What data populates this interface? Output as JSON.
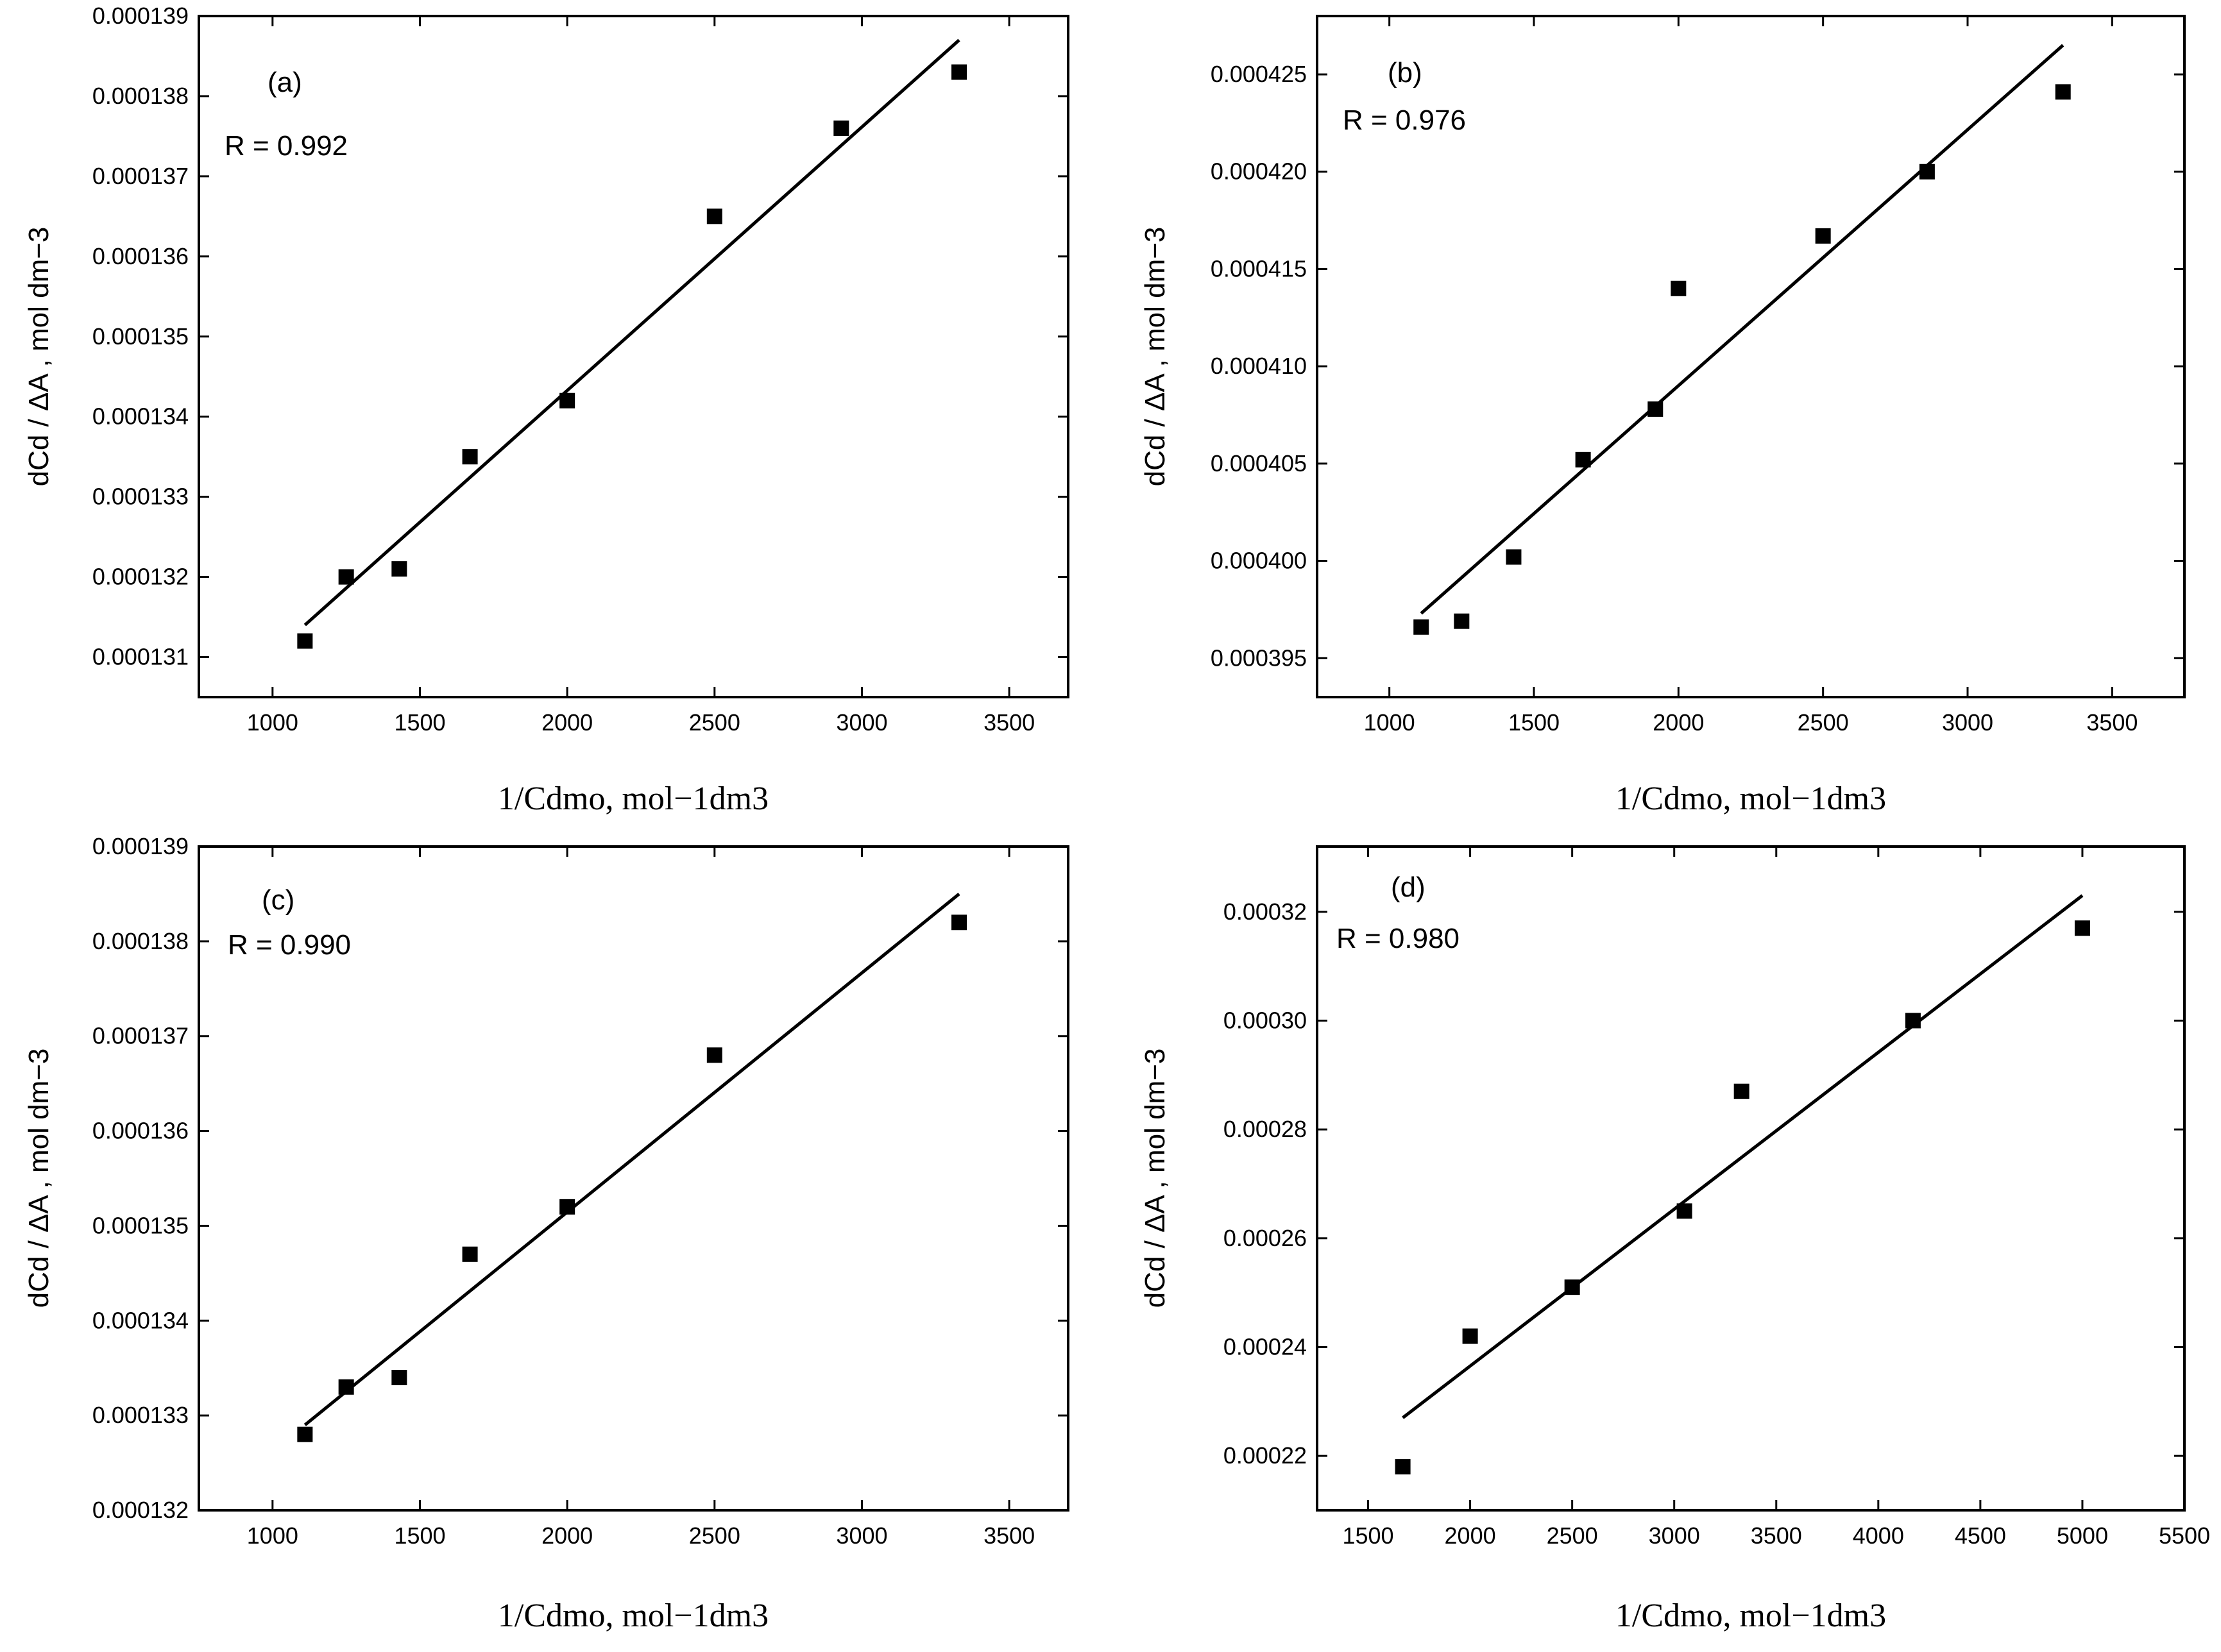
{
  "chart_data": [
    {
      "type": "scatter",
      "panel_label": "(a)",
      "r_text": "R = 0.992",
      "xlabel": "1/Cdmo, mol−1dm3",
      "ylabel": "dCd / ΔA , mol dm−3",
      "xlim": [
        750,
        3700
      ],
      "ylim": [
        0.0001305,
        0.000139
      ],
      "xticks": [
        1000,
        1500,
        2000,
        2500,
        3000,
        3500
      ],
      "xtick_labels": [
        "1000",
        "1500",
        "2000",
        "2500",
        "3000",
        "3500"
      ],
      "yticks": [
        0.000131,
        0.000132,
        0.000133,
        0.000134,
        0.000135,
        0.000136,
        0.000137,
        0.000138,
        0.000139
      ],
      "ytick_labels": [
        "0.000131",
        "0.000132",
        "0.000133",
        "0.000134",
        "0.000135",
        "0.000136",
        "0.000137",
        "0.000138",
        "0.000139"
      ],
      "points": [
        {
          "x": 1110,
          "y": 0.0001312
        },
        {
          "x": 1250,
          "y": 0.000132
        },
        {
          "x": 1430,
          "y": 0.0001321
        },
        {
          "x": 1670,
          "y": 0.0001335
        },
        {
          "x": 2000,
          "y": 0.0001342
        },
        {
          "x": 2500,
          "y": 0.0001365
        },
        {
          "x": 2930,
          "y": 0.0001376
        },
        {
          "x": 3330,
          "y": 0.0001383
        }
      ],
      "fit_line": {
        "x": [
          1110,
          3330
        ],
        "y": [
          0.0001314,
          0.0001387
        ]
      }
    },
    {
      "type": "scatter",
      "panel_label": "(b)",
      "r_text": "R = 0.976",
      "xlabel": "1/Cdmo, mol−1dm3",
      "ylabel": "dCd / ΔA , mol dm−3",
      "xlim": [
        750,
        3750
      ],
      "ylim": [
        0.000393,
        0.000428
      ],
      "xticks": [
        1000,
        1500,
        2000,
        2500,
        3000,
        3500
      ],
      "xtick_labels": [
        "1000",
        "1500",
        "2000",
        "2500",
        "3000",
        "3500"
      ],
      "yticks": [
        0.000395,
        0.0004,
        0.000405,
        0.00041,
        0.000415,
        0.00042,
        0.000425
      ],
      "ytick_labels": [
        "0.000395",
        "0.000400",
        "0.000405",
        "0.000410",
        "0.000415",
        "0.000420",
        "0.000425"
      ],
      "points": [
        {
          "x": 1110,
          "y": 0.0003966
        },
        {
          "x": 1250,
          "y": 0.0003969
        },
        {
          "x": 1430,
          "y": 0.0004002
        },
        {
          "x": 1670,
          "y": 0.0004052
        },
        {
          "x": 1920,
          "y": 0.0004078
        },
        {
          "x": 2000,
          "y": 0.000414
        },
        {
          "x": 2500,
          "y": 0.0004167
        },
        {
          "x": 2860,
          "y": 0.00042
        },
        {
          "x": 3330,
          "y": 0.0004241
        }
      ],
      "fit_line": {
        "x": [
          1110,
          3330
        ],
        "y": [
          0.0003973,
          0.0004265
        ]
      }
    },
    {
      "type": "scatter",
      "panel_label": "(c)",
      "r_text": "R = 0.990",
      "xlabel": "1/Cdmo, mol−1dm3",
      "ylabel": "dCd / ΔA , mol dm−3",
      "xlim": [
        750,
        3700
      ],
      "ylim": [
        0.000132,
        0.000139
      ],
      "xticks": [
        1000,
        1500,
        2000,
        2500,
        3000,
        3500
      ],
      "xtick_labels": [
        "1000",
        "1500",
        "2000",
        "2500",
        "3000",
        "3500"
      ],
      "yticks": [
        0.000132,
        0.000133,
        0.000134,
        0.000135,
        0.000136,
        0.000137,
        0.000138,
        0.000139
      ],
      "ytick_labels": [
        "0.000132",
        "0.000133",
        "0.000134",
        "0.000135",
        "0.000136",
        "0.000137",
        "0.000138",
        "0.000139"
      ],
      "points": [
        {
          "x": 1110,
          "y": 0.0001328
        },
        {
          "x": 1250,
          "y": 0.0001333
        },
        {
          "x": 1430,
          "y": 0.0001334
        },
        {
          "x": 1670,
          "y": 0.0001347
        },
        {
          "x": 2000,
          "y": 0.0001352
        },
        {
          "x": 2500,
          "y": 0.0001368
        },
        {
          "x": 3330,
          "y": 0.0001382
        }
      ],
      "fit_line": {
        "x": [
          1110,
          3330
        ],
        "y": [
          0.0001329,
          0.0001385
        ]
      }
    },
    {
      "type": "scatter",
      "panel_label": "(d)",
      "r_text": "R = 0.980",
      "xlabel": "1/Cdmo, mol−1dm3",
      "ylabel": "dCd / ΔA , mol dm−3",
      "xlim": [
        1250,
        5500
      ],
      "ylim": [
        0.00021,
        0.000332
      ],
      "xticks": [
        1500,
        2000,
        2500,
        3000,
        3500,
        4000,
        4500,
        5000,
        5500
      ],
      "xtick_labels": [
        "1500",
        "2000",
        "2500",
        "3000",
        "3500",
        "4000",
        "4500",
        "5000",
        "5500"
      ],
      "yticks": [
        0.00022,
        0.00024,
        0.00026,
        0.00028,
        0.0003,
        0.00032
      ],
      "ytick_labels": [
        "0.00022",
        "0.00024",
        "0.00026",
        "0.00028",
        "0.00030",
        "0.00032"
      ],
      "points": [
        {
          "x": 1670,
          "y": 0.000218
        },
        {
          "x": 2000,
          "y": 0.000242
        },
        {
          "x": 2500,
          "y": 0.000251
        },
        {
          "x": 3050,
          "y": 0.000265
        },
        {
          "x": 3330,
          "y": 0.000287
        },
        {
          "x": 4170,
          "y": 0.0003
        },
        {
          "x": 5000,
          "y": 0.000317
        }
      ],
      "fit_line": {
        "x": [
          1670,
          5000
        ],
        "y": [
          0.000227,
          0.000323
        ]
      }
    }
  ]
}
